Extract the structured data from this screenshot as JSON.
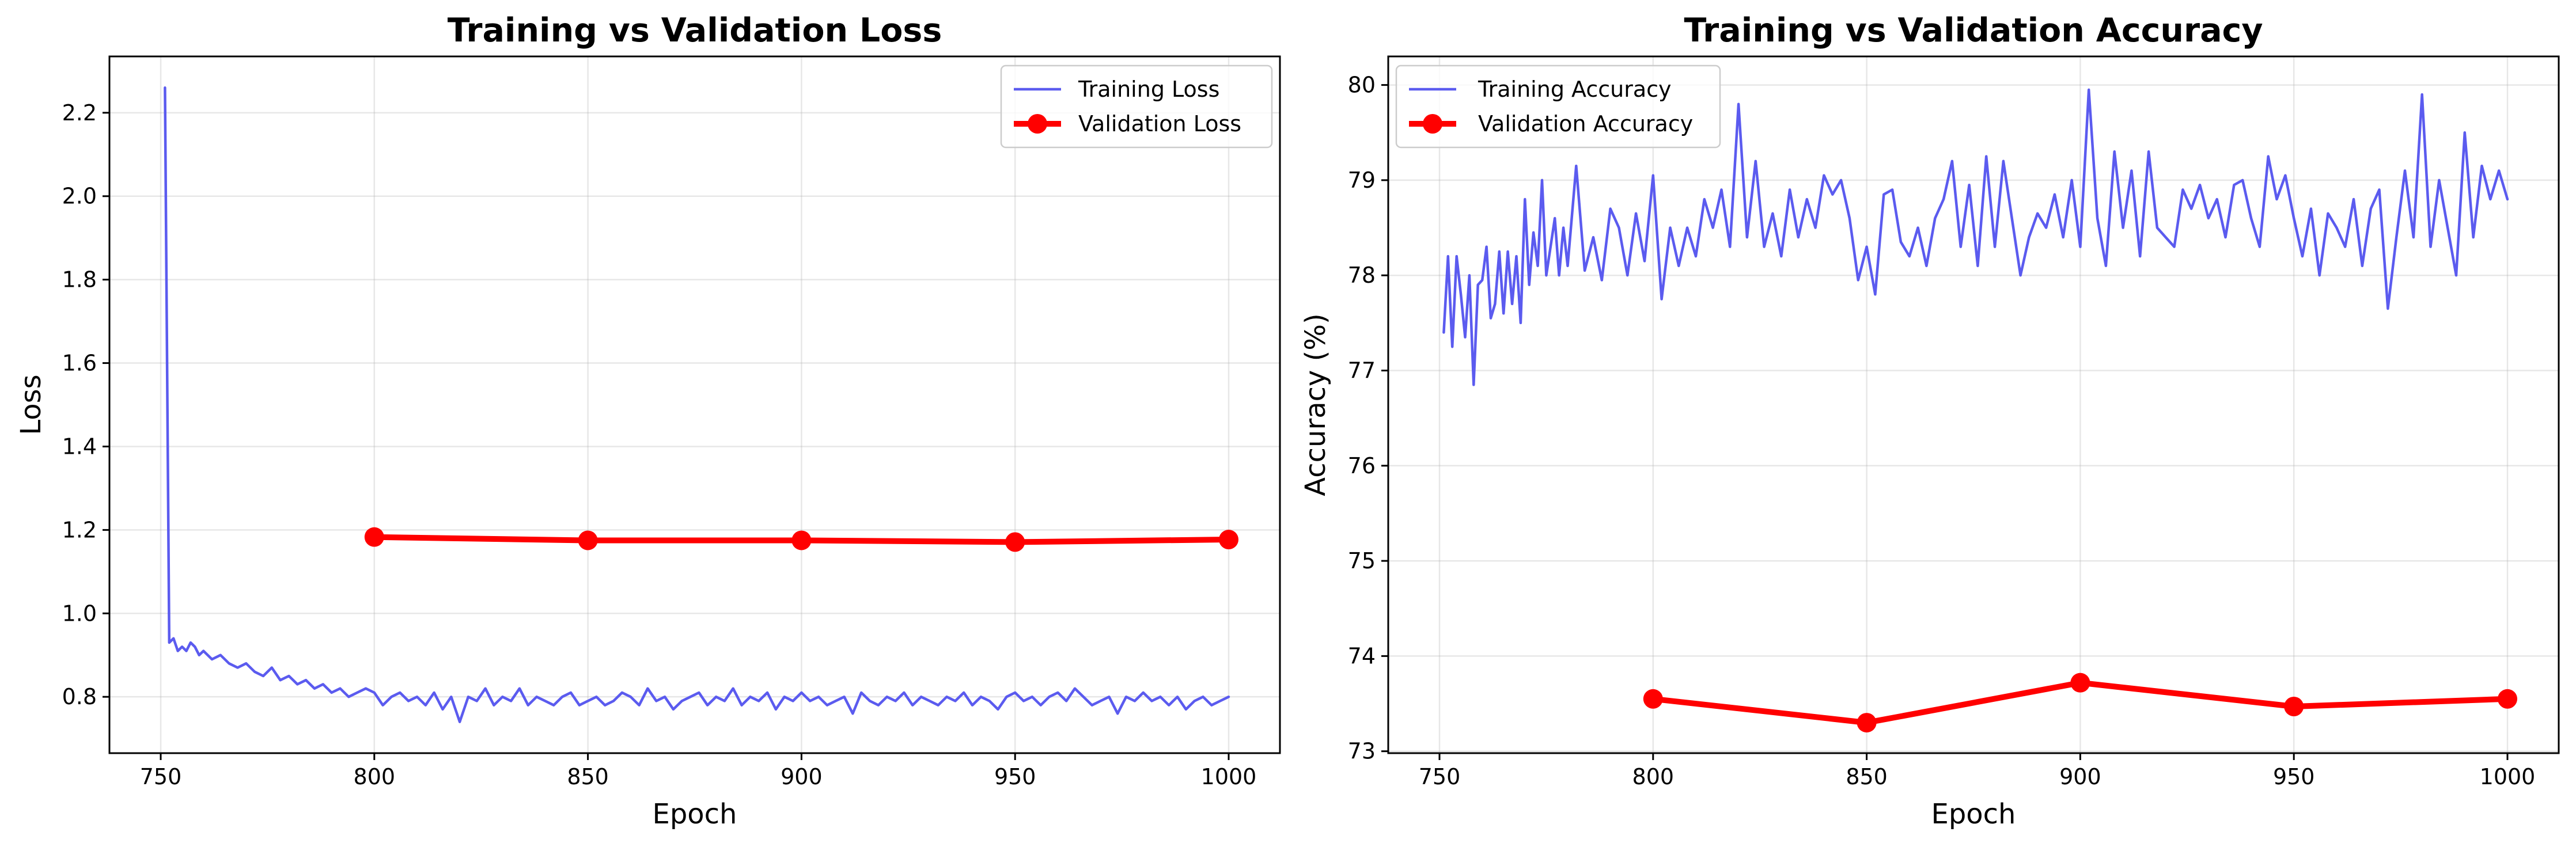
{
  "charts": [
    {
      "id": "loss",
      "title": "Training vs Validation Loss",
      "xlabel": "Epoch",
      "ylabel": "Loss",
      "xlim": [
        738,
        1012
      ],
      "ylim": [
        0.665,
        2.335
      ],
      "xticks": [
        {
          "value": 750,
          "label": "750"
        },
        {
          "value": 800,
          "label": "800"
        },
        {
          "value": 850,
          "label": "850"
        },
        {
          "value": 900,
          "label": "900"
        },
        {
          "value": 950,
          "label": "950"
        },
        {
          "value": 1000,
          "label": "1000"
        }
      ],
      "yticks": [
        {
          "value": 0.8,
          "label": "0.8"
        },
        {
          "value": 1.0,
          "label": "1.0"
        },
        {
          "value": 1.2,
          "label": "1.2"
        },
        {
          "value": 1.4,
          "label": "1.4"
        },
        {
          "value": 1.6,
          "label": "1.6"
        },
        {
          "value": 1.8,
          "label": "1.8"
        },
        {
          "value": 2.0,
          "label": "2.0"
        },
        {
          "value": 2.2,
          "label": "2.2"
        }
      ],
      "legend_position": "upper-right",
      "chart_data": {
        "type": "line",
        "grid": true,
        "series": [
          {
            "name": "Training Loss",
            "color": "#5b5bef",
            "markers": false,
            "x": [
              751,
              752,
              753,
              754,
              755,
              756,
              757,
              758,
              759,
              760,
              762,
              764,
              766,
              768,
              770,
              772,
              774,
              776,
              778,
              780,
              782,
              784,
              786,
              788,
              790,
              792,
              794,
              796,
              798,
              800,
              802,
              804,
              806,
              808,
              810,
              812,
              814,
              816,
              818,
              820,
              822,
              824,
              826,
              828,
              830,
              832,
              834,
              836,
              838,
              840,
              842,
              844,
              846,
              848,
              850,
              852,
              854,
              856,
              858,
              860,
              862,
              864,
              866,
              868,
              870,
              872,
              874,
              876,
              878,
              880,
              882,
              884,
              886,
              888,
              890,
              892,
              894,
              896,
              898,
              900,
              902,
              904,
              906,
              908,
              910,
              912,
              914,
              916,
              918,
              920,
              922,
              924,
              926,
              928,
              930,
              932,
              934,
              936,
              938,
              940,
              942,
              944,
              946,
              948,
              950,
              952,
              954,
              956,
              958,
              960,
              962,
              964,
              966,
              968,
              970,
              972,
              974,
              976,
              978,
              980,
              982,
              984,
              986,
              988,
              990,
              992,
              994,
              996,
              998,
              1000
            ],
            "y": [
              2.26,
              0.93,
              0.94,
              0.91,
              0.92,
              0.91,
              0.93,
              0.92,
              0.9,
              0.91,
              0.89,
              0.9,
              0.88,
              0.87,
              0.88,
              0.86,
              0.85,
              0.87,
              0.84,
              0.85,
              0.83,
              0.84,
              0.82,
              0.83,
              0.81,
              0.82,
              0.8,
              0.81,
              0.82,
              0.81,
              0.78,
              0.8,
              0.81,
              0.79,
              0.8,
              0.78,
              0.81,
              0.77,
              0.8,
              0.74,
              0.8,
              0.79,
              0.82,
              0.78,
              0.8,
              0.79,
              0.82,
              0.78,
              0.8,
              0.79,
              0.78,
              0.8,
              0.81,
              0.78,
              0.79,
              0.8,
              0.78,
              0.79,
              0.81,
              0.8,
              0.78,
              0.82,
              0.79,
              0.8,
              0.77,
              0.79,
              0.8,
              0.81,
              0.78,
              0.8,
              0.79,
              0.82,
              0.78,
              0.8,
              0.79,
              0.81,
              0.77,
              0.8,
              0.79,
              0.81,
              0.79,
              0.8,
              0.78,
              0.79,
              0.8,
              0.76,
              0.81,
              0.79,
              0.78,
              0.8,
              0.79,
              0.81,
              0.78,
              0.8,
              0.79,
              0.78,
              0.8,
              0.79,
              0.81,
              0.78,
              0.8,
              0.79,
              0.77,
              0.8,
              0.81,
              0.79,
              0.8,
              0.78,
              0.8,
              0.81,
              0.79,
              0.82,
              0.8,
              0.78,
              0.79,
              0.8,
              0.76,
              0.8,
              0.79,
              0.81,
              0.79,
              0.8,
              0.78,
              0.8,
              0.77,
              0.79,
              0.8,
              0.78,
              0.79,
              0.8
            ]
          },
          {
            "name": "Validation Loss",
            "color": "#ff0000",
            "markers": true,
            "x": [
              800,
              850,
              900,
              950,
              1000
            ],
            "y": [
              1.183,
              1.175,
              1.175,
              1.171,
              1.177
            ]
          }
        ]
      }
    },
    {
      "id": "accuracy",
      "title": "Training vs Validation Accuracy",
      "xlabel": "Epoch",
      "ylabel": "Accuracy (%)",
      "xlim": [
        738,
        1012
      ],
      "ylim": [
        72.98,
        80.3
      ],
      "xticks": [
        {
          "value": 750,
          "label": "750"
        },
        {
          "value": 800,
          "label": "800"
        },
        {
          "value": 850,
          "label": "850"
        },
        {
          "value": 900,
          "label": "900"
        },
        {
          "value": 950,
          "label": "950"
        },
        {
          "value": 1000,
          "label": "1000"
        }
      ],
      "yticks": [
        {
          "value": 73,
          "label": "73"
        },
        {
          "value": 74,
          "label": "74"
        },
        {
          "value": 75,
          "label": "75"
        },
        {
          "value": 76,
          "label": "76"
        },
        {
          "value": 77,
          "label": "77"
        },
        {
          "value": 78,
          "label": "78"
        },
        {
          "value": 79,
          "label": "79"
        },
        {
          "value": 80,
          "label": "80"
        }
      ],
      "legend_position": "upper-left",
      "chart_data": {
        "type": "line",
        "grid": true,
        "series": [
          {
            "name": "Training Accuracy",
            "color": "#5b5bef",
            "markers": false,
            "x": [
              751,
              752,
              753,
              754,
              755,
              756,
              757,
              758,
              759,
              760,
              761,
              762,
              763,
              764,
              765,
              766,
              767,
              768,
              769,
              770,
              771,
              772,
              773,
              774,
              775,
              776,
              777,
              778,
              779,
              780,
              782,
              784,
              786,
              788,
              790,
              792,
              794,
              796,
              798,
              800,
              802,
              804,
              806,
              808,
              810,
              812,
              814,
              816,
              818,
              820,
              822,
              824,
              826,
              828,
              830,
              832,
              834,
              836,
              838,
              840,
              842,
              844,
              846,
              848,
              850,
              852,
              854,
              856,
              858,
              860,
              862,
              864,
              866,
              868,
              870,
              872,
              874,
              876,
              878,
              880,
              882,
              884,
              886,
              888,
              890,
              892,
              894,
              896,
              898,
              900,
              902,
              904,
              906,
              908,
              910,
              912,
              914,
              916,
              918,
              920,
              922,
              924,
              926,
              928,
              930,
              932,
              934,
              936,
              938,
              940,
              942,
              944,
              946,
              948,
              950,
              952,
              954,
              956,
              958,
              960,
              962,
              964,
              966,
              968,
              970,
              972,
              974,
              976,
              978,
              980,
              982,
              984,
              986,
              988,
              990,
              992,
              994,
              996,
              998,
              1000
            ],
            "y": [
              77.4,
              78.2,
              77.25,
              78.2,
              77.8,
              77.35,
              78.0,
              76.85,
              77.9,
              77.95,
              78.3,
              77.55,
              77.7,
              78.25,
              77.6,
              78.25,
              77.7,
              78.2,
              77.5,
              78.8,
              77.9,
              78.45,
              78.1,
              79.0,
              78.0,
              78.3,
              78.6,
              78.0,
              78.5,
              78.1,
              79.15,
              78.05,
              78.4,
              77.95,
              78.7,
              78.5,
              78.0,
              78.65,
              78.15,
              79.05,
              77.75,
              78.5,
              78.1,
              78.5,
              78.2,
              78.8,
              78.5,
              78.9,
              78.3,
              79.8,
              78.4,
              79.2,
              78.3,
              78.65,
              78.2,
              78.9,
              78.4,
              78.8,
              78.5,
              79.05,
              78.85,
              79.0,
              78.6,
              77.95,
              78.3,
              77.8,
              78.85,
              78.9,
              78.35,
              78.2,
              78.5,
              78.1,
              78.6,
              78.8,
              79.2,
              78.3,
              78.95,
              78.1,
              79.25,
              78.3,
              79.2,
              78.6,
              78.0,
              78.4,
              78.65,
              78.5,
              78.85,
              78.4,
              79.0,
              78.3,
              79.95,
              78.6,
              78.1,
              79.3,
              78.5,
              79.1,
              78.2,
              79.3,
              78.5,
              78.4,
              78.3,
              78.9,
              78.7,
              78.95,
              78.6,
              78.8,
              78.4,
              78.95,
              79.0,
              78.6,
              78.3,
              79.25,
              78.8,
              79.05,
              78.6,
              78.2,
              78.7,
              78.0,
              78.65,
              78.5,
              78.3,
              78.8,
              78.1,
              78.7,
              78.9,
              77.65,
              78.4,
              79.1,
              78.4,
              79.9,
              78.3,
              79.0,
              78.5,
              78.0,
              79.5,
              78.4,
              79.15,
              78.8,
              79.1,
              78.8
            ]
          },
          {
            "name": "Validation Accuracy",
            "color": "#ff0000",
            "markers": true,
            "x": [
              800,
              850,
              900,
              950,
              1000
            ],
            "y": [
              73.55,
              73.3,
              73.72,
              73.47,
              73.55
            ]
          }
        ]
      }
    }
  ]
}
